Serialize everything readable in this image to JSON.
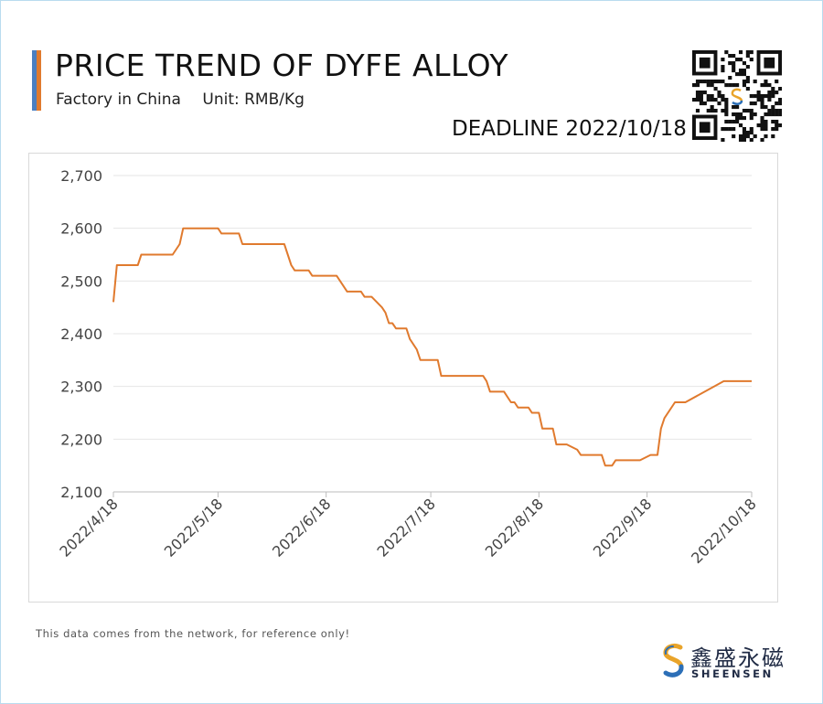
{
  "header": {
    "title": "PRICE TREND OF DYFE ALLOY",
    "subtitle_left": "Factory in China",
    "subtitle_right": "Unit: RMB/Kg",
    "deadline": "DEADLINE 2022/10/18"
  },
  "footer": {
    "note": "This data comes from the network, for reference only!",
    "brand_cn": "鑫盛永磁",
    "brand_en": "SHEENSEN"
  },
  "colors": {
    "line": "#e07a2e",
    "accent_blue": "#4a7fc1",
    "accent_orange": "#e07a2e",
    "grid": "#e6e6e6"
  },
  "icons": {
    "qr": "qr-code-icon",
    "logo": "sheensen-logo-icon"
  },
  "chart_data": {
    "type": "line",
    "title": "PRICE TREND OF DYFE ALLOY",
    "xlabel": "",
    "ylabel": "",
    "ylim": [
      2100,
      2700
    ],
    "yticks": [
      2100,
      2200,
      2300,
      2400,
      2500,
      2600,
      2700
    ],
    "ytick_labels": [
      "2,100",
      "2,200",
      "2,300",
      "2,400",
      "2,500",
      "2,600",
      "2,700"
    ],
    "xlim": [
      "2022-04-18",
      "2022-10-18"
    ],
    "xtick_labels": [
      "2022/4/18",
      "2022/5/18",
      "2022/6/18",
      "2022/7/18",
      "2022/8/18",
      "2022/9/18",
      "2022/10/18"
    ],
    "xtick_dates": [
      "2022-04-18",
      "2022-05-18",
      "2022-06-18",
      "2022-07-18",
      "2022-08-18",
      "2022-09-18",
      "2022-10-18"
    ],
    "grid": true,
    "legend": "none",
    "series": [
      {
        "points": [
          [
            "2022-04-18",
            2460
          ],
          [
            "2022-04-19",
            2530
          ],
          [
            "2022-04-25",
            2530
          ],
          [
            "2022-04-26",
            2550
          ],
          [
            "2022-05-05",
            2550
          ],
          [
            "2022-05-07",
            2570
          ],
          [
            "2022-05-08",
            2600
          ],
          [
            "2022-05-18",
            2600
          ],
          [
            "2022-05-19",
            2590
          ],
          [
            "2022-05-24",
            2590
          ],
          [
            "2022-05-25",
            2570
          ],
          [
            "2022-06-06",
            2570
          ],
          [
            "2022-06-08",
            2530
          ],
          [
            "2022-06-09",
            2520
          ],
          [
            "2022-06-13",
            2520
          ],
          [
            "2022-06-14",
            2510
          ],
          [
            "2022-06-21",
            2510
          ],
          [
            "2022-06-24",
            2480
          ],
          [
            "2022-06-28",
            2480
          ],
          [
            "2022-06-29",
            2470
          ],
          [
            "2022-07-01",
            2470
          ],
          [
            "2022-07-04",
            2450
          ],
          [
            "2022-07-05",
            2440
          ],
          [
            "2022-07-06",
            2420
          ],
          [
            "2022-07-07",
            2420
          ],
          [
            "2022-07-08",
            2410
          ],
          [
            "2022-07-11",
            2410
          ],
          [
            "2022-07-12",
            2390
          ],
          [
            "2022-07-14",
            2370
          ],
          [
            "2022-07-15",
            2350
          ],
          [
            "2022-07-20",
            2350
          ],
          [
            "2022-07-21",
            2320
          ],
          [
            "2022-08-02",
            2320
          ],
          [
            "2022-08-03",
            2310
          ],
          [
            "2022-08-04",
            2290
          ],
          [
            "2022-08-08",
            2290
          ],
          [
            "2022-08-10",
            2270
          ],
          [
            "2022-08-11",
            2270
          ],
          [
            "2022-08-12",
            2260
          ],
          [
            "2022-08-15",
            2260
          ],
          [
            "2022-08-16",
            2250
          ],
          [
            "2022-08-18",
            2250
          ],
          [
            "2022-08-19",
            2220
          ],
          [
            "2022-08-22",
            2220
          ],
          [
            "2022-08-23",
            2190
          ],
          [
            "2022-08-26",
            2190
          ],
          [
            "2022-08-29",
            2180
          ],
          [
            "2022-08-30",
            2170
          ],
          [
            "2022-09-05",
            2170
          ],
          [
            "2022-09-06",
            2150
          ],
          [
            "2022-09-08",
            2150
          ],
          [
            "2022-09-09",
            2160
          ],
          [
            "2022-09-16",
            2160
          ],
          [
            "2022-09-19",
            2170
          ],
          [
            "2022-09-21",
            2170
          ],
          [
            "2022-09-22",
            2220
          ],
          [
            "2022-09-23",
            2240
          ],
          [
            "2022-09-26",
            2270
          ],
          [
            "2022-09-29",
            2270
          ],
          [
            "2022-10-10",
            2310
          ],
          [
            "2022-10-18",
            2310
          ]
        ]
      }
    ]
  }
}
